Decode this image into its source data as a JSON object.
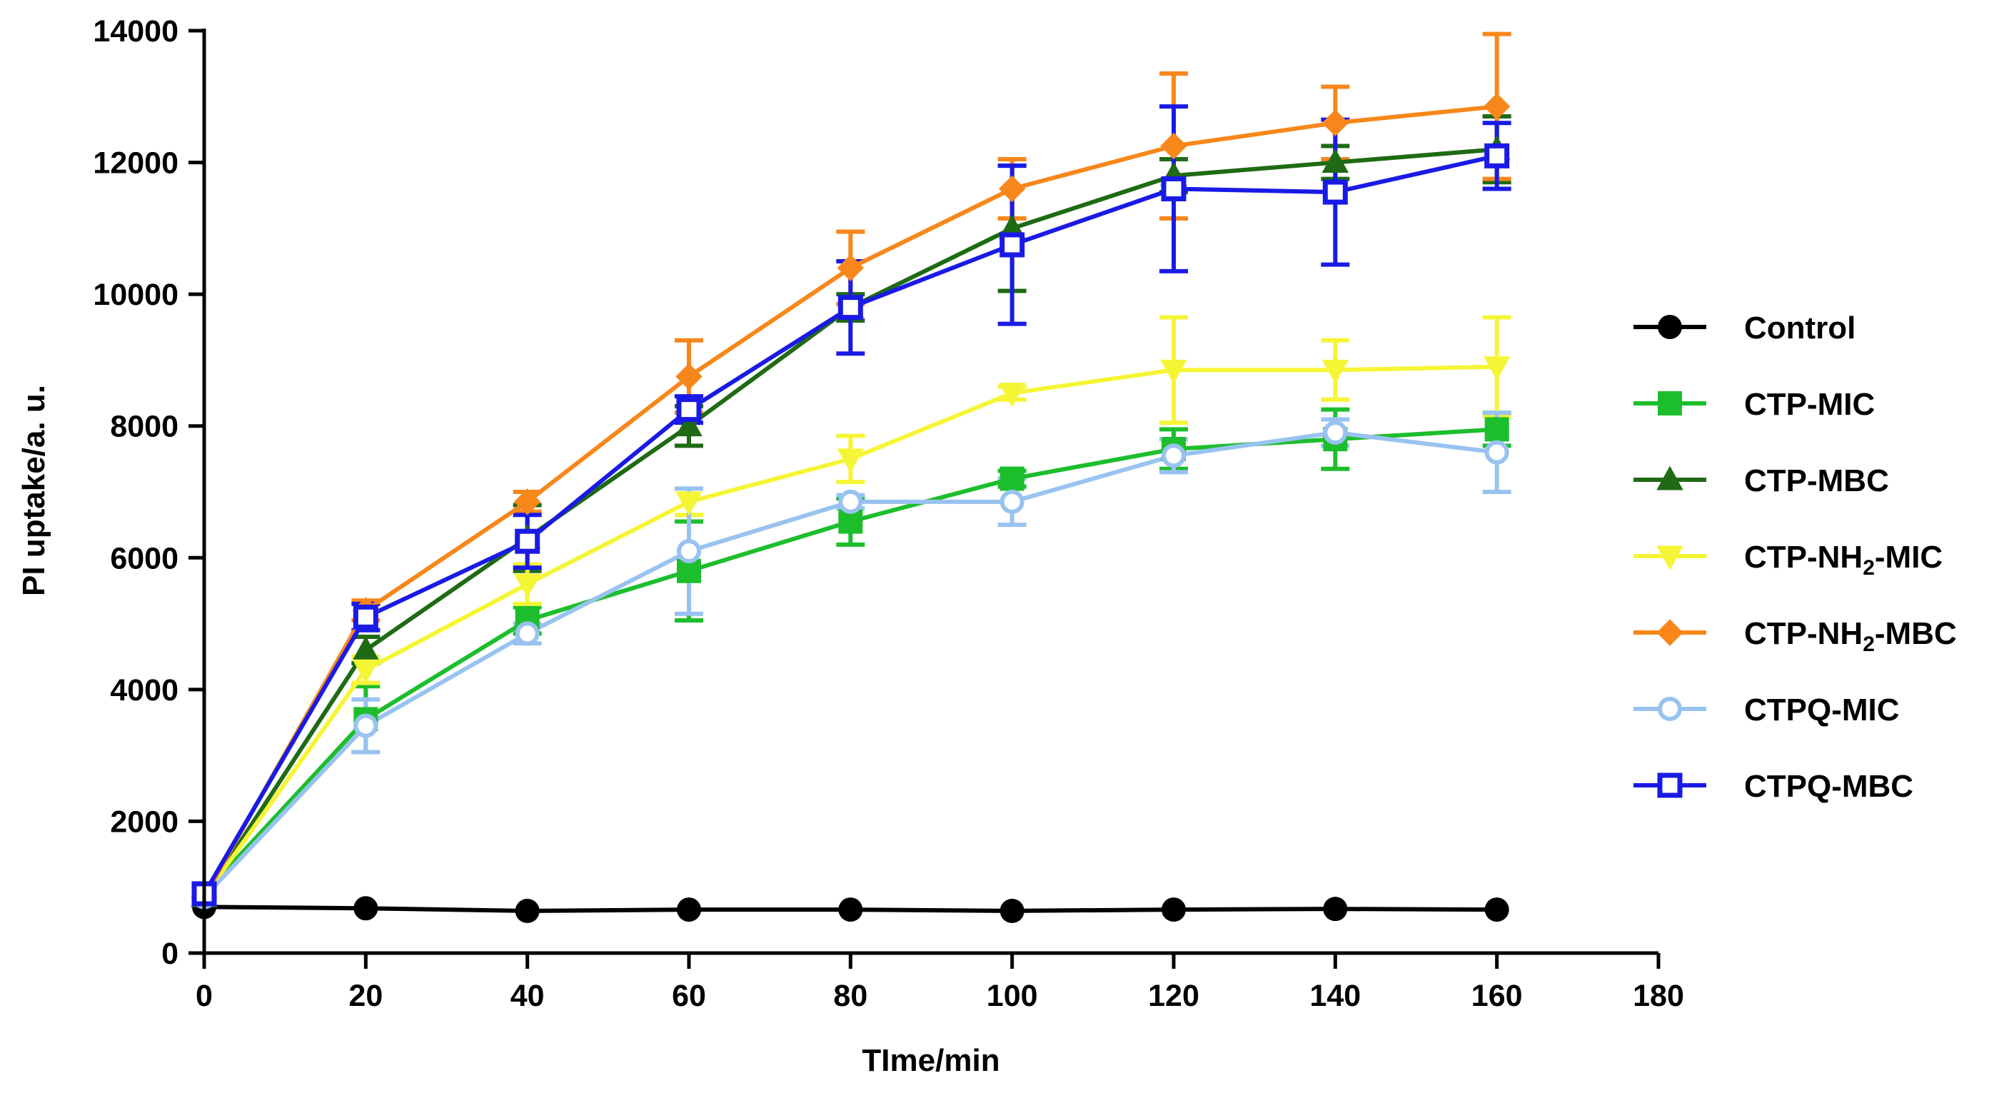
{
  "chart_data": {
    "type": "line",
    "xlabel": "TIme/min",
    "ylabel": "PI uptake/a. u.",
    "xlim": [
      0,
      180
    ],
    "ylim": [
      0,
      14000
    ],
    "xticks": [
      "0",
      "20",
      "40",
      "60",
      "80",
      "100",
      "120",
      "140",
      "160",
      "180"
    ],
    "yticks": [
      "0",
      "2000",
      "4000",
      "6000",
      "8000",
      "10000",
      "12000",
      "14000"
    ],
    "x": [
      0,
      20,
      40,
      60,
      80,
      100,
      120,
      140,
      160
    ],
    "legend_position": "right",
    "series": [
      {
        "name": "Control",
        "label_parts": [
          "Control"
        ],
        "color": "#000000",
        "marker": "circle",
        "values": [
          700,
          680,
          640,
          660,
          660,
          640,
          660,
          670,
          660
        ],
        "errors": [
          0,
          0,
          0,
          0,
          0,
          0,
          0,
          0,
          0
        ]
      },
      {
        "name": "CTP-MIC",
        "label_parts": [
          "CTP-MIC"
        ],
        "color": "#1DBE2C",
        "marker": "square",
        "values": [
          900,
          3550,
          5050,
          5800,
          6550,
          7200,
          7650,
          7800,
          7950
        ],
        "errors": [
          0,
          500,
          200,
          750,
          350,
          120,
          300,
          450,
          250
        ]
      },
      {
        "name": "CTP-MBC",
        "label_parts": [
          "CTP-MBC"
        ],
        "color": "#1F6A14",
        "marker": "triangle-up",
        "values": [
          850,
          4600,
          6300,
          8000,
          9800,
          11000,
          11800,
          12000,
          12200
        ],
        "errors": [
          0,
          200,
          500,
          300,
          200,
          950,
          250,
          250,
          500
        ]
      },
      {
        "name": "CTP-NH2-MIC",
        "label_parts": [
          "CTP-NH",
          "2",
          "-MIC"
        ],
        "color": "#F5F536",
        "marker": "triangle-down",
        "values": [
          850,
          4300,
          5600,
          6850,
          7500,
          8500,
          8850,
          8850,
          8900
        ],
        "errors": [
          0,
          200,
          300,
          200,
          350,
          100,
          800,
          450,
          750
        ]
      },
      {
        "name": "CTP-NH2-MBC",
        "label_parts": [
          "CTP-NH",
          "2",
          "-MBC"
        ],
        "color": "#F7871B",
        "marker": "diamond",
        "values": [
          850,
          5200,
          6850,
          8750,
          10400,
          11600,
          12250,
          12600,
          12850
        ],
        "errors": [
          0,
          150,
          150,
          550,
          550,
          450,
          1100,
          550,
          1100
        ]
      },
      {
        "name": "CTPQ-MIC",
        "label_parts": [
          "CTPQ-MIC"
        ],
        "color": "#98C3F0",
        "marker": "circle-open",
        "values": [
          850,
          3450,
          4850,
          6100,
          6850,
          6850,
          7550,
          7900,
          7600
        ],
        "errors": [
          0,
          400,
          150,
          950,
          100,
          350,
          250,
          200,
          600
        ]
      },
      {
        "name": "CTPQ-MBC",
        "label_parts": [
          "CTPQ-MBC"
        ],
        "color": "#1A1AE6",
        "marker": "square-open",
        "values": [
          900,
          5100,
          6250,
          8250,
          9800,
          10750,
          11600,
          11550,
          12100
        ],
        "errors": [
          0,
          200,
          400,
          200,
          700,
          1200,
          1250,
          1100,
          500
        ]
      }
    ]
  }
}
